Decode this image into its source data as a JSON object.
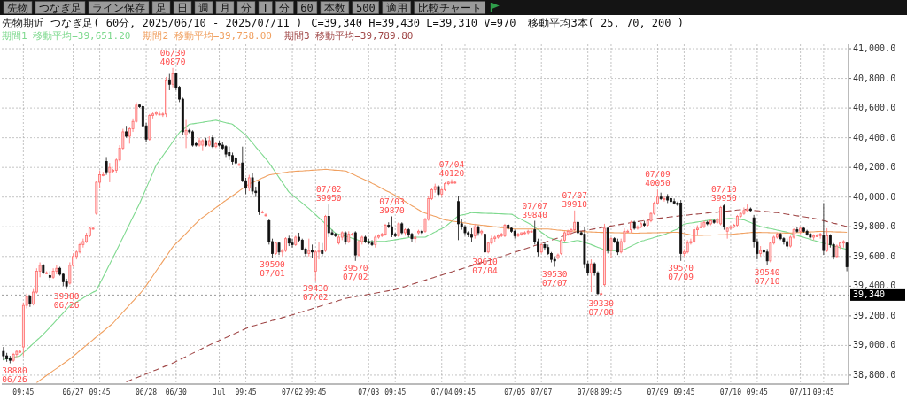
{
  "chart_data": {
    "type": "candlestick",
    "title": "先物期近 つなぎ足( 60分, 2025/06/10 - 2025/07/11 )",
    "subtitle": "C=39,340 H=39,430 L=39,310 V=970",
    "categories": [
      null,
      null,
      null,
      null,
      null,
      null,
      "09:45",
      null,
      null,
      null,
      null,
      null,
      null,
      null,
      null,
      null,
      null,
      null,
      null,
      null,
      null,
      "06/27",
      null,
      null,
      null,
      null,
      null,
      null,
      null,
      "09:45",
      null,
      null,
      null,
      null,
      null,
      null,
      null,
      null,
      null,
      null,
      null,
      null,
      null,
      "06/28",
      null,
      null,
      null,
      null,
      null,
      null,
      null,
      null,
      "06/30",
      null,
      null,
      null,
      null,
      null,
      null,
      null,
      null,
      null,
      null,
      null,
      null,
      "Jul",
      null,
      null,
      null,
      null,
      null,
      null,
      null,
      "09:45",
      null,
      null,
      null,
      null,
      null,
      null,
      null,
      null,
      null,
      null,
      null,
      null,
      null,
      "07/02",
      null,
      null,
      null,
      null,
      null,
      null,
      "09:45",
      null,
      null,
      null,
      null,
      null,
      null,
      null,
      null,
      null,
      null,
      null,
      null,
      null,
      null,
      null,
      "07/03",
      null,
      null,
      null,
      null,
      null,
      null,
      null,
      "09:45",
      null,
      null,
      null,
      null,
      null,
      null,
      null,
      null,
      null,
      null,
      null,
      null,
      null,
      "07/04",
      null,
      null,
      null,
      null,
      null,
      null,
      "09:45",
      null,
      null,
      null,
      null,
      null,
      null,
      null,
      null,
      null,
      null,
      null,
      null,
      null,
      null,
      "07/05",
      null,
      null,
      null,
      null,
      null,
      null,
      null,
      "07/07",
      null,
      null,
      null,
      null,
      null,
      null,
      null,
      null,
      null,
      null,
      null,
      null,
      null,
      "07/08",
      null,
      null,
      null,
      null,
      null,
      null,
      "09:45",
      null,
      null,
      null,
      null,
      null,
      null,
      null,
      null,
      null,
      null,
      null,
      null,
      null,
      "07/09",
      null,
      null,
      null,
      null,
      null,
      null,
      null,
      "09:45",
      null,
      null,
      null,
      null,
      null,
      null,
      null,
      null,
      null,
      null,
      null,
      null,
      null,
      "07/10",
      null,
      null,
      null,
      null,
      null,
      null,
      null,
      "09:45",
      null,
      null,
      null,
      null,
      null,
      null,
      null,
      null,
      null,
      null,
      null,
      null,
      "07/11",
      null,
      null,
      null,
      null,
      null,
      null,
      "09:45",
      null,
      null,
      null,
      null,
      null,
      null,
      null
    ],
    "ohlc": [
      [
        38960,
        38990,
        38900,
        38930
      ],
      [
        38930,
        38950,
        38890,
        38910
      ],
      [
        38910,
        38930,
        38880,
        38900
      ],
      [
        38900,
        38950,
        38890,
        38940
      ],
      [
        38940,
        38970,
        38920,
        38960
      ],
      [
        38960,
        38970,
        38950,
        38960
      ],
      [
        38990,
        39290,
        38930,
        39270
      ],
      [
        39270,
        39350,
        39250,
        39330
      ],
      [
        39330,
        39340,
        39260,
        39280
      ],
      [
        39280,
        39380,
        39270,
        39360
      ],
      [
        39360,
        39520,
        39350,
        39500
      ],
      [
        39500,
        39560,
        39460,
        39540
      ],
      [
        39540,
        39550,
        39480,
        39490
      ],
      [
        39490,
        39500,
        39480,
        39490
      ],
      [
        39470,
        39500,
        39440,
        39460
      ],
      [
        39460,
        39520,
        39450,
        39500
      ],
      [
        39500,
        39540,
        39480,
        39520
      ],
      [
        39520,
        39530,
        39470,
        39480
      ],
      [
        39480,
        39490,
        39400,
        39430
      ],
      [
        39430,
        39450,
        39380,
        39400
      ],
      [
        39420,
        39560,
        39410,
        39540
      ],
      [
        39540,
        39620,
        39530,
        39600
      ],
      [
        39600,
        39640,
        39580,
        39630
      ],
      [
        39630,
        39690,
        39620,
        39680
      ],
      [
        39680,
        39720,
        39660,
        39700
      ],
      [
        39700,
        39760,
        39690,
        39740
      ],
      [
        39740,
        39800,
        39730,
        39790
      ],
      [
        39790,
        39800,
        39780,
        39790
      ],
      [
        39890,
        40110,
        39880,
        40100
      ],
      [
        40100,
        40180,
        40060,
        40150
      ],
      [
        40150,
        40170,
        40140,
        40150
      ],
      [
        40240,
        40270,
        40150,
        40170
      ],
      [
        40170,
        40230,
        40100,
        40200
      ],
      [
        40180,
        40190,
        40160,
        40180
      ],
      [
        40180,
        40260,
        40160,
        40250
      ],
      [
        40250,
        40350,
        40240,
        40330
      ],
      [
        40330,
        40460,
        40320,
        40440
      ],
      [
        40440,
        40480,
        40400,
        40410
      ],
      [
        40410,
        40470,
        40360,
        40460
      ],
      [
        40460,
        40530,
        40440,
        40510
      ],
      [
        40510,
        40640,
        40500,
        40620
      ],
      [
        40620,
        40630,
        40600,
        40610
      ],
      [
        40610,
        40620,
        40470,
        40480
      ],
      [
        40480,
        40500,
        40370,
        40390
      ],
      [
        40390,
        40560,
        40380,
        40550
      ],
      [
        40550,
        40570,
        40530,
        40560
      ],
      [
        40560,
        40580,
        40550,
        40570
      ],
      [
        40560,
        40580,
        40550,
        40560
      ],
      [
        40560,
        40570,
        40540,
        40560
      ],
      [
        40560,
        40810,
        40540,
        40790
      ],
      [
        40790,
        40830,
        40720,
        40760
      ],
      [
        40760,
        40870,
        40740,
        40830
      ],
      [
        40830,
        40840,
        40720,
        40740
      ],
      [
        40740,
        40750,
        40640,
        40660
      ],
      [
        40660,
        40670,
        40420,
        40440
      ],
      [
        40420,
        40520,
        40330,
        40450
      ],
      [
        40450,
        40460,
        40430,
        40440
      ],
      [
        40440,
        40450,
        40340,
        40350
      ],
      [
        40360,
        40370,
        40340,
        40350
      ],
      [
        40350,
        40400,
        40340,
        40380
      ],
      [
        40350,
        40390,
        40310,
        40380
      ],
      [
        40380,
        40400,
        40340,
        40350
      ],
      [
        40350,
        40410,
        40340,
        40380
      ],
      [
        40400,
        40420,
        40330,
        40340
      ],
      [
        40340,
        40370,
        40330,
        40360
      ],
      [
        40360,
        40380,
        40340,
        40350
      ],
      [
        40350,
        40370,
        40320,
        40330
      ],
      [
        40340,
        40350,
        40270,
        40290
      ],
      [
        40300,
        40340,
        40250,
        40280
      ],
      [
        40280,
        40300,
        40220,
        40240
      ],
      [
        40260,
        40270,
        40220,
        40230
      ],
      [
        40220,
        40230,
        40210,
        40220
      ],
      [
        40230,
        40340,
        40100,
        40110
      ],
      [
        40110,
        40130,
        40020,
        40060
      ],
      [
        40060,
        40150,
        40040,
        40130
      ],
      [
        40130,
        40160,
        40020,
        40040
      ],
      [
        40040,
        40070,
        40000,
        40030
      ],
      [
        40100,
        40110,
        39880,
        39900
      ],
      [
        39900,
        39910,
        39890,
        39900
      ],
      [
        39880,
        39890,
        39870,
        39880
      ],
      [
        39840,
        39850,
        39680,
        39700
      ],
      [
        39700,
        39720,
        39590,
        39620
      ],
      [
        39620,
        39700,
        39610,
        39690
      ],
      [
        39690,
        39700,
        39610,
        39630
      ],
      [
        39630,
        39650,
        39600,
        39640
      ],
      [
        39640,
        39730,
        39630,
        39720
      ],
      [
        39720,
        39740,
        39670,
        39690
      ],
      [
        39690,
        39720,
        39660,
        39680
      ],
      [
        39680,
        39740,
        39670,
        39730
      ],
      [
        39730,
        39760,
        39700,
        39710
      ],
      [
        39710,
        39720,
        39640,
        39650
      ],
      [
        39650,
        39660,
        39600,
        39620
      ],
      [
        39620,
        39720,
        39600,
        39640
      ],
      [
        39640,
        39680,
        39590,
        39630
      ],
      [
        39500,
        39640,
        39430,
        39630
      ],
      [
        39630,
        39700,
        39580,
        39640
      ],
      [
        39640,
        39690,
        39600,
        39620
      ],
      [
        39640,
        39880,
        39630,
        39870
      ],
      [
        39870,
        39950,
        39730,
        39760
      ],
      [
        39760,
        39780,
        39740,
        39750
      ],
      [
        39750,
        39760,
        39730,
        39740
      ],
      [
        39690,
        39750,
        39680,
        39730
      ],
      [
        39730,
        39770,
        39710,
        39760
      ],
      [
        39760,
        39770,
        39680,
        39700
      ],
      [
        39700,
        39770,
        39690,
        39750
      ],
      [
        39750,
        39760,
        39740,
        39750
      ],
      [
        39760,
        39770,
        39570,
        39610
      ],
      [
        39610,
        39710,
        39600,
        39700
      ],
      [
        39700,
        39740,
        39680,
        39730
      ],
      [
        39730,
        39740,
        39690,
        39700
      ],
      [
        39700,
        39720,
        39680,
        39690
      ],
      [
        39690,
        39710,
        39670,
        39680
      ],
      [
        39680,
        39740,
        39660,
        39730
      ],
      [
        39730,
        39750,
        39720,
        39740
      ],
      [
        39740,
        39760,
        39730,
        39750
      ],
      [
        39750,
        39820,
        39740,
        39810
      ],
      [
        39810,
        39830,
        39790,
        39800
      ],
      [
        39800,
        39870,
        39730,
        39750
      ],
      [
        39750,
        39760,
        39730,
        39740
      ],
      [
        39740,
        39830,
        39730,
        39820
      ],
      [
        39820,
        39830,
        39750,
        39760
      ],
      [
        39760,
        39790,
        39740,
        39780
      ],
      [
        39780,
        39790,
        39730,
        39750
      ],
      [
        39750,
        39760,
        39700,
        39720
      ],
      [
        39720,
        39740,
        39690,
        39730
      ],
      [
        39760,
        39780,
        39750,
        39770
      ],
      [
        39770,
        39780,
        39750,
        39760
      ],
      [
        39770,
        39860,
        39760,
        39850
      ],
      [
        39850,
        40010,
        39840,
        39990
      ],
      [
        39990,
        40060,
        39980,
        40050
      ],
      [
        40050,
        40090,
        40030,
        40070
      ],
      [
        40070,
        40080,
        40010,
        40020
      ],
      [
        40020,
        40060,
        40000,
        40050
      ],
      [
        40050,
        40100,
        40040,
        40090
      ],
      [
        40090,
        40110,
        40080,
        40100
      ],
      [
        40100,
        40120,
        40090,
        40100
      ],
      [
        40100,
        40110,
        40090,
        40100
      ],
      [
        39970,
        40010,
        39710,
        39820
      ],
      [
        39820,
        39850,
        39780,
        39800
      ],
      [
        39800,
        39810,
        39740,
        39760
      ],
      [
        39760,
        39770,
        39730,
        39750
      ],
      [
        39750,
        39790,
        39700,
        39730
      ],
      [
        39740,
        39820,
        39720,
        39800
      ],
      [
        39800,
        39810,
        39740,
        39760
      ],
      [
        39760,
        39780,
        39740,
        39770
      ],
      [
        39750,
        39760,
        39610,
        39630
      ],
      [
        39630,
        39700,
        39620,
        39690
      ],
      [
        39690,
        39740,
        39680,
        39720
      ],
      [
        39720,
        39740,
        39700,
        39730
      ],
      [
        39730,
        39750,
        39720,
        39740
      ],
      [
        39740,
        39760,
        39730,
        39750
      ],
      [
        39740,
        39820,
        39730,
        39810
      ],
      [
        39810,
        39820,
        39780,
        39790
      ],
      [
        39790,
        39800,
        39760,
        39770
      ],
      [
        39770,
        39780,
        39720,
        39740
      ],
      [
        39740,
        39760,
        39730,
        39750
      ],
      [
        39750,
        39760,
        39740,
        39760
      ],
      [
        39760,
        39770,
        39750,
        39760
      ],
      [
        39760,
        39780,
        39750,
        39770
      ],
      [
        39770,
        39780,
        39760,
        39770
      ],
      [
        39780,
        39840,
        39680,
        39700
      ],
      [
        39700,
        39720,
        39600,
        39630
      ],
      [
        39630,
        39690,
        39620,
        39680
      ],
      [
        39680,
        39700,
        39640,
        39660
      ],
      [
        39660,
        39680,
        39610,
        39620
      ],
      [
        39620,
        39630,
        39560,
        39580
      ],
      [
        39580,
        39600,
        39530,
        39570
      ],
      [
        39590,
        39620,
        39580,
        39610
      ],
      [
        39620,
        39720,
        39610,
        39710
      ],
      [
        39710,
        39770,
        39700,
        39760
      ],
      [
        39750,
        39780,
        39740,
        39770
      ],
      [
        39770,
        39790,
        39750,
        39780
      ],
      [
        39780,
        39910,
        39770,
        39830
      ],
      [
        39830,
        39840,
        39740,
        39760
      ],
      [
        39760,
        39770,
        39740,
        39750
      ],
      [
        39750,
        39800,
        39520,
        39550
      ],
      [
        39550,
        39570,
        39470,
        39490
      ],
      [
        39490,
        39580,
        39360,
        39550
      ],
      [
        39550,
        39560,
        39470,
        39490
      ],
      [
        39490,
        39500,
        39340,
        39350
      ],
      [
        39350,
        39370,
        39330,
        39350
      ],
      [
        39410,
        39820,
        39400,
        39790
      ],
      [
        39790,
        39800,
        39620,
        39640
      ],
      [
        39640,
        39730,
        39590,
        39720
      ],
      [
        39720,
        39730,
        39690,
        39700
      ],
      [
        39700,
        39720,
        39610,
        39630
      ],
      [
        39630,
        39720,
        39620,
        39700
      ],
      [
        39700,
        39790,
        39690,
        39770
      ],
      [
        39770,
        39780,
        39760,
        39770
      ],
      [
        39780,
        39840,
        39760,
        39830
      ],
      [
        39830,
        39840,
        39780,
        39790
      ],
      [
        39790,
        39810,
        39780,
        39800
      ],
      [
        39800,
        39830,
        39790,
        39820
      ],
      [
        39820,
        39840,
        39800,
        39810
      ],
      [
        39810,
        39850,
        39800,
        39840
      ],
      [
        39840,
        39900,
        39830,
        39890
      ],
      [
        39890,
        39970,
        39880,
        39960
      ],
      [
        39960,
        40050,
        39950,
        40000
      ],
      [
        40000,
        40030,
        39980,
        39990
      ],
      [
        39990,
        40010,
        39970,
        39990
      ],
      [
        40000,
        40020,
        39960,
        39980
      ],
      [
        39990,
        40000,
        39960,
        39970
      ],
      [
        39970,
        39990,
        39950,
        39960
      ],
      [
        39960,
        39970,
        39940,
        39950
      ],
      [
        39960,
        39980,
        39570,
        39620
      ],
      [
        39620,
        39650,
        39600,
        39630
      ],
      [
        39630,
        39710,
        39620,
        39690
      ],
      [
        39690,
        39720,
        39680,
        39700
      ],
      [
        39700,
        39800,
        39690,
        39780
      ],
      [
        39780,
        39810,
        39740,
        39790
      ],
      [
        39800,
        39830,
        39790,
        39800
      ],
      [
        39800,
        39840,
        39790,
        39830
      ],
      [
        39830,
        39840,
        39810,
        39820
      ],
      [
        39820,
        39850,
        39810,
        39840
      ],
      [
        39840,
        39850,
        39820,
        39830
      ],
      [
        39830,
        39860,
        39820,
        39850
      ],
      [
        39820,
        39940,
        39810,
        39930
      ],
      [
        39940,
        39950,
        39780,
        39800
      ],
      [
        39770,
        39800,
        39720,
        39790
      ],
      [
        39790,
        39810,
        39780,
        39800
      ],
      [
        39800,
        39820,
        39790,
        39810
      ],
      [
        39810,
        39880,
        39800,
        39870
      ],
      [
        39870,
        39900,
        39860,
        39890
      ],
      [
        39890,
        39930,
        39880,
        39910
      ],
      [
        39910,
        39950,
        39900,
        39920
      ],
      [
        39920,
        39930,
        39900,
        39910
      ],
      [
        39860,
        39880,
        39660,
        39700
      ],
      [
        39700,
        39720,
        39580,
        39620
      ],
      [
        39620,
        39670,
        39600,
        39640
      ],
      [
        39640,
        39650,
        39600,
        39630
      ],
      [
        39630,
        39650,
        39540,
        39570
      ],
      [
        39570,
        39700,
        39560,
        39690
      ],
      [
        39690,
        39740,
        39680,
        39730
      ],
      [
        39730,
        39760,
        39720,
        39750
      ],
      [
        39750,
        39760,
        39710,
        39720
      ],
      [
        39720,
        39730,
        39680,
        39700
      ],
      [
        39700,
        39720,
        39650,
        39670
      ],
      [
        39670,
        39740,
        39660,
        39730
      ],
      [
        39730,
        39790,
        39720,
        39780
      ],
      [
        39780,
        39800,
        39760,
        39770
      ],
      [
        39770,
        39800,
        39750,
        39790
      ],
      [
        39790,
        39800,
        39760,
        39770
      ],
      [
        39770,
        39780,
        39740,
        39750
      ],
      [
        39750,
        39760,
        39720,
        39730
      ],
      [
        39730,
        39750,
        39710,
        39740
      ],
      [
        39740,
        39750,
        39730,
        39740
      ],
      [
        39740,
        39760,
        39720,
        39750
      ],
      [
        39740,
        39960,
        39610,
        39640
      ],
      [
        39640,
        39790,
        39630,
        39740
      ],
      [
        39740,
        39750,
        39660,
        39680
      ],
      [
        39680,
        39690,
        39580,
        39600
      ],
      [
        39600,
        39680,
        39590,
        39670
      ],
      [
        39670,
        39700,
        39650,
        39690
      ],
      [
        39690,
        39710,
        39660,
        39700
      ],
      [
        39690,
        39700,
        39500,
        39530
      ]
    ],
    "series": [
      {
        "name": "期間1 移動平均=39,651.20",
        "type": "line",
        "color": "#7fd98f",
        "line_style": "solid",
        "values": [
          38905,
          38910,
          38915,
          38920,
          38925,
          38930,
          38951,
          38971,
          38992,
          39013,
          39034,
          39054,
          39075,
          39099,
          39123,
          39147,
          39171,
          39195,
          39219,
          39243,
          39267,
          39280,
          39293,
          39306,
          39320,
          39333,
          39346,
          39359,
          39372,
          39416,
          39460,
          39504,
          39548,
          39592,
          39638,
          39683,
          39729,
          39774,
          39820,
          39865,
          39911,
          39956,
          40008,
          40060,
          40111,
          40163,
          40215,
          40246,
          40278,
          40309,
          40341,
          40372,
          40404,
          40435,
          40453,
          40472,
          40490,
          40494,
          40497,
          40501,
          40504,
          40508,
          40511,
          40515,
          40518,
          40512,
          40507,
          40501,
          40496,
          40490,
          40472,
          40454,
          40436,
          40418,
          40391,
          40365,
          40338,
          40311,
          40285,
          40258,
          40231,
          40198,
          40165,
          40132,
          40099,
          40066,
          40033,
          40015,
          39996,
          39978,
          39960,
          39941,
          39923,
          39902,
          39882,
          39861,
          39840,
          39819,
          39799,
          39778,
          39757,
          39750,
          39743,
          39736,
          39730,
          39723,
          39716,
          39709,
          39702,
          39702,
          39702,
          39702,
          39702,
          39702,
          39702,
          39702,
          39706,
          39709,
          39713,
          39716,
          39720,
          39723,
          39727,
          39730,
          39730,
          39730,
          39730,
          39730,
          39742,
          39753,
          39765,
          39777,
          39788,
          39800,
          39818,
          39837,
          39855,
          39873,
          39879,
          39884,
          39890,
          39895,
          39894,
          39893,
          39892,
          39891,
          39890,
          39890,
          39889,
          39888,
          39887,
          39886,
          39885,
          39884,
          39872,
          39860,
          39849,
          39837,
          39825,
          39813,
          39796,
          39780,
          39763,
          39747,
          39730,
          39722,
          39714,
          39707,
          39699,
          39691,
          39695,
          39700,
          39704,
          39708,
          39701,
          39694,
          39687,
          39680,
          39671,
          39662,
          39654,
          39645,
          39636,
          39638,
          39640,
          39643,
          39645,
          39647,
          39658,
          39669,
          39680,
          39691,
          39702,
          39708,
          39715,
          39721,
          39728,
          39734,
          39741,
          39747,
          39757,
          39766,
          39776,
          39785,
          39802,
          39818,
          39822,
          39825,
          39829,
          39832,
          39836,
          39839,
          39843,
          39846,
          39848,
          39850,
          39851,
          39853,
          39855,
          39857,
          39854,
          39851,
          39849,
          39846,
          39837,
          39828,
          39820,
          39811,
          39802,
          39797,
          39792,
          39788,
          39783,
          39778,
          39773,
          39768,
          39763,
          39756,
          39749,
          39742,
          39735,
          39729,
          39722,
          39715,
          39708,
          39702,
          39696,
          39690,
          39684,
          39678,
          39671,
          39665,
          39659,
          39653,
          39647
        ]
      },
      {
        "name": "期間2 移動平均=39,758.00",
        "type": "line",
        "color": "#f0a060",
        "line_style": "solid",
        "values": [
          null,
          null,
          null,
          null,
          null,
          null,
          null,
          null,
          null,
          null,
          38750,
          38766,
          38782,
          38798,
          38814,
          38830,
          38845,
          38861,
          38877,
          38893,
          38909,
          38928,
          38946,
          38965,
          38983,
          39002,
          39021,
          39039,
          39058,
          39077,
          39095,
          39114,
          39132,
          39151,
          39176,
          39200,
          39225,
          39249,
          39274,
          39298,
          39323,
          39347,
          39372,
          39404,
          39437,
          39469,
          39502,
          39534,
          39567,
          39599,
          39632,
          39664,
          39687,
          39710,
          39732,
          39755,
          39778,
          39801,
          39823,
          39846,
          39863,
          39879,
          39896,
          39912,
          39929,
          39945,
          39962,
          39978,
          39994,
          40009,
          40025,
          40041,
          40057,
          40072,
          40088,
          40098,
          40108,
          40118,
          40129,
          40139,
          40149,
          40153,
          40156,
          40160,
          40164,
          40167,
          40171,
          40172,
          40174,
          40175,
          40176,
          40178,
          40179,
          40181,
          40182,
          40184,
          40185,
          40187,
          40185,
          40183,
          40181,
          40180,
          40178,
          40176,
          40166,
          40156,
          40146,
          40135,
          40125,
          40115,
          40105,
          40093,
          40082,
          40070,
          40058,
          40046,
          40035,
          40023,
          40011,
          39997,
          39984,
          39970,
          39956,
          39942,
          39929,
          39915,
          39901,
          39893,
          39885,
          39877,
          39870,
          39862,
          39854,
          39846,
          39843,
          39839,
          39836,
          39832,
          39829,
          39825,
          39822,
          39818,
          39815,
          39813,
          39810,
          39808,
          39805,
          39803,
          39800,
          39798,
          39795,
          39793,
          39790,
          39788,
          39785,
          39785,
          39785,
          39785,
          39785,
          39785,
          39785,
          39785,
          39785,
          39785,
          39785,
          39783,
          39781,
          39778,
          39776,
          39774,
          39773,
          39772,
          39771,
          39770,
          39769,
          39767,
          39766,
          39765,
          39764,
          39763,
          39762,
          39762,
          39761,
          39761,
          39760,
          39760,
          39759,
          39759,
          39758,
          39758,
          39757,
          39757,
          39758,
          39758,
          39759,
          39759,
          39760,
          39760,
          39761,
          39761,
          39762,
          39762,
          39763,
          39763,
          39759,
          39754,
          39750,
          39745,
          39741,
          39742,
          39742,
          39743,
          39743,
          39744,
          39745,
          39745,
          39746,
          39746,
          39747,
          39749,
          39751,
          39753,
          39755,
          39757,
          39759,
          39761,
          39763,
          39762,
          39762,
          39761,
          39761,
          39760,
          39760,
          39759,
          39758,
          39758,
          39757,
          39758,
          39759,
          39761,
          39762,
          39763,
          39764,
          39765,
          39766,
          39768,
          39769,
          39768,
          39767,
          39767,
          39766,
          39765,
          39765,
          39764,
          39763
        ]
      },
      {
        "name": "期間3 移動平均=39,789.80",
        "type": "line",
        "color": "#a04848",
        "line_style": "dashed",
        "values": [
          null,
          null,
          null,
          null,
          null,
          null,
          null,
          null,
          null,
          null,
          null,
          null,
          null,
          null,
          null,
          null,
          null,
          null,
          null,
          null,
          null,
          null,
          null,
          null,
          null,
          null,
          null,
          null,
          null,
          null,
          null,
          null,
          null,
          null,
          null,
          null,
          null,
          38755,
          38764,
          38773,
          38782,
          38791,
          38800,
          38809,
          38818,
          38827,
          38836,
          38845,
          38854,
          38863,
          38872,
          38881,
          38892,
          38903,
          38914,
          38925,
          38936,
          38948,
          38959,
          38970,
          38981,
          38992,
          39003,
          39013,
          39023,
          39033,
          39043,
          39053,
          39063,
          39074,
          39084,
          39094,
          39104,
          39114,
          39124,
          39130,
          39137,
          39143,
          39150,
          39156,
          39162,
          39169,
          39175,
          39181,
          39188,
          39194,
          39201,
          39207,
          39214,
          39221,
          39228,
          39235,
          39241,
          39248,
          39255,
          39262,
          39269,
          39276,
          39283,
          39290,
          39296,
          39303,
          39310,
          39317,
          39321,
          39325,
          39329,
          39333,
          39337,
          39341,
          39345,
          39349,
          39353,
          39357,
          39361,
          39365,
          39369,
          39373,
          39377,
          39384,
          39391,
          39398,
          39405,
          39412,
          39419,
          39426,
          39433,
          39440,
          39447,
          39454,
          39461,
          39468,
          39475,
          39482,
          39489,
          39496,
          39503,
          39510,
          39516,
          39523,
          39530,
          39537,
          39544,
          39551,
          39558,
          39564,
          39571,
          39578,
          39585,
          39592,
          39599,
          39607,
          39614,
          39621,
          39629,
          39636,
          39643,
          39651,
          39658,
          39665,
          39673,
          39680,
          39687,
          39695,
          39702,
          39710,
          39717,
          39725,
          39733,
          39740,
          39748,
          39755,
          39763,
          39767,
          39771,
          39775,
          39778,
          39782,
          39786,
          39790,
          39794,
          39798,
          39802,
          39805,
          39809,
          39813,
          39817,
          39820,
          39824,
          39828,
          39831,
          39835,
          39839,
          39842,
          39846,
          39850,
          39853,
          39857,
          39859,
          39862,
          39864,
          39867,
          39869,
          39872,
          39874,
          39877,
          39879,
          39882,
          39884,
          39886,
          39888,
          39891,
          39893,
          39895,
          39897,
          39899,
          39902,
          39904,
          39906,
          39908,
          39910,
          39913,
          39915,
          39917,
          39915,
          39913,
          39910,
          39908,
          39906,
          39904,
          39902,
          39899,
          39897,
          39895,
          39892,
          39888,
          39885,
          39881,
          39878,
          39874,
          39871,
          39867,
          39864,
          39860,
          39857,
          39852,
          39846,
          39841,
          39835,
          39830,
          39824,
          39819,
          39813,
          39808,
          39802
        ]
      }
    ],
    "ylim": [
      38740,
      41030
    ],
    "yticks": [
      {
        "value": 38800,
        "label": "38,800.0"
      },
      {
        "value": 39000,
        "label": "39,000.0"
      },
      {
        "value": 39200,
        "label": "39,200.0"
      },
      {
        "value": 39400,
        "label": "39,400.0"
      },
      {
        "value": 39600,
        "label": "39,600.0"
      },
      {
        "value": 39800,
        "label": "39,800.0"
      },
      {
        "value": 40000,
        "label": "40,000.0"
      },
      {
        "value": 40200,
        "label": "40,200.0"
      },
      {
        "value": 40400,
        "label": "40,400.0"
      },
      {
        "value": 40600,
        "label": "40,600.0"
      },
      {
        "value": 40800,
        "label": "40,800.0"
      },
      {
        "value": 41000,
        "label": "41,000.0"
      }
    ],
    "grid": true,
    "legend": "top left",
    "ref_lines": [
      {
        "axis": "y",
        "value": 39340,
        "label": "39,340"
      }
    ],
    "annotations": [
      "移動平均3本( 25, 70, 200 )",
      "先物",
      "つなぎ足",
      "ライン保存",
      "足",
      "日",
      "週",
      "月",
      "分",
      "T",
      "分",
      "60",
      "本数",
      "500",
      "適用",
      "比較チャート",
      {
        "text": "38880\n06/26",
        "y": 38880
      },
      {
        "text": "39380\n06/26",
        "y": 39380
      },
      {
        "text": "06/30\n40870",
        "y": 40870
      },
      {
        "text": "39590\n07/01",
        "y": 39590
      },
      {
        "text": "39430\n07/02",
        "y": 39430
      },
      {
        "text": "07/02\n39950",
        "y": 39950
      },
      {
        "text": "39570\n07/02",
        "y": 39570
      },
      {
        "text": "07/03\n39870",
        "y": 39870
      },
      {
        "text": "07/04\n40120",
        "y": 40120
      },
      {
        "text": "39610\n07/04",
        "y": 39610
      },
      {
        "text": "07/07\n39840",
        "y": 39840
      },
      {
        "text": "39530\n07/07",
        "y": 39530
      },
      {
        "text": "07/07\n39910",
        "y": 39910
      },
      {
        "text": "39330\n07/08",
        "y": 39330
      },
      {
        "text": "07/09\n40050",
        "y": 40050
      },
      {
        "text": "39570\n07/09",
        "y": 39570
      },
      {
        "text": "07/10\n39950",
        "y": 39950
      },
      {
        "text": "39540\n07/10",
        "y": 39540
      }
    ]
  }
}
